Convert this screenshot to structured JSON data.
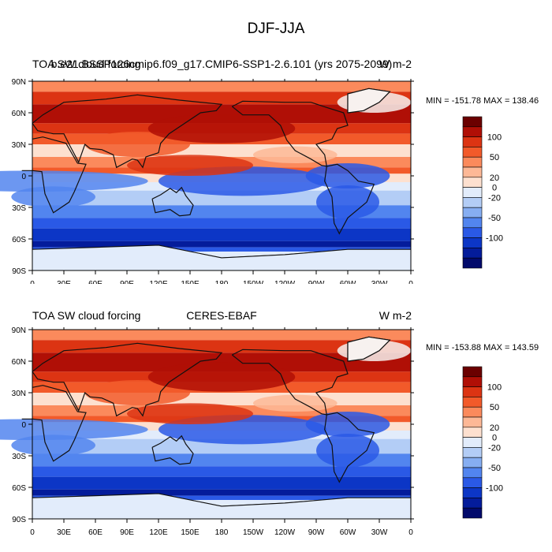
{
  "page_title": "DJF-JJA",
  "panels": [
    {
      "title_left": "TOA SW cloud forcing",
      "title_center": "b.e21.BSSP126cmip6.f09_g17.CMIP6-SSP1-2.6.101 (yrs 2075-2099)",
      "title_right": "W m-2",
      "minmax": "MIN = -151.78 MAX = 138.46"
    },
    {
      "title_left": "TOA SW cloud forcing",
      "title_center": "CERES-EBAF",
      "title_right": "W m-2",
      "minmax": "MIN = -153.88 MAX = 143.59"
    }
  ],
  "axes": {
    "lon_labels": [
      "0",
      "30E",
      "60E",
      "90E",
      "120E",
      "150E",
      "180",
      "150W",
      "120W",
      "90W",
      "60W",
      "30W",
      "0"
    ],
    "lat_labels": [
      "90N",
      "60N",
      "30N",
      "0",
      "30S",
      "60S",
      "90S"
    ]
  },
  "colorbar": {
    "tick_labels": [
      "100",
      "50",
      "20",
      "0",
      "-20",
      "-50",
      "-100"
    ],
    "colors": [
      "#6b0000",
      "#b00f06",
      "#dc3413",
      "#f25a2a",
      "#fb8a5c",
      "#fdb896",
      "#fde0cf",
      "#e2ecfb",
      "#b3cdf6",
      "#86aef2",
      "#5285ef",
      "#2a59e6",
      "#0c36c6",
      "#041c9b",
      "#020a6b"
    ]
  },
  "map_fill": {
    "colors": {
      "deep_red": "#b00f06",
      "red": "#dc3413",
      "orange_red": "#f25a2a",
      "orange": "#fb8a5c",
      "light_orange": "#fdb896",
      "peach": "#fde0cf",
      "pale_blue": "#e2ecfb",
      "light_blue": "#b3cdf6",
      "blue": "#5285ef",
      "mid_blue": "#2a59e6",
      "dark_blue": "#0c36c6",
      "navy": "#041c9b"
    }
  }
}
